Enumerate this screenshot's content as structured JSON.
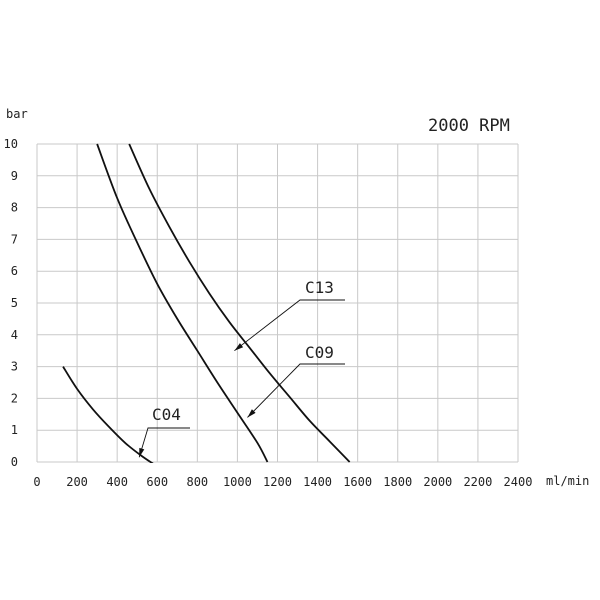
{
  "chart_data": {
    "type": "line",
    "title": "2000 RPM",
    "xlabel": "ml/min",
    "ylabel": "bar",
    "xlim": [
      0,
      2400
    ],
    "ylim": [
      0,
      10
    ],
    "xticks": [
      "0",
      "200",
      "400",
      "600",
      "800",
      "1000",
      "1200",
      "1400",
      "1600",
      "1800",
      "2000",
      "2200",
      "2400"
    ],
    "yticks": [
      "0",
      "1",
      "2",
      "3",
      "4",
      "5",
      "6",
      "7",
      "8",
      "9",
      "10"
    ],
    "grid": true,
    "series": [
      {
        "name": "C04",
        "x": [
          130,
          200,
          280,
          360,
          440,
          520,
          590
        ],
        "y": [
          3,
          2.3,
          1.65,
          1.1,
          0.6,
          0.2,
          -0.1
        ]
      },
      {
        "name": "C09",
        "x": [
          300,
          400,
          500,
          600,
          700,
          800,
          900,
          1000,
          1100,
          1150
        ],
        "y": [
          10,
          8.3,
          6.9,
          5.6,
          4.5,
          3.5,
          2.5,
          1.55,
          0.6,
          0
        ]
      },
      {
        "name": "C13",
        "x": [
          460,
          560,
          660,
          760,
          860,
          960,
          1060,
          1160,
          1260,
          1360,
          1460,
          1560
        ],
        "y": [
          10,
          8.6,
          7.4,
          6.3,
          5.3,
          4.4,
          3.6,
          2.8,
          2.05,
          1.3,
          0.65,
          0
        ]
      }
    ]
  }
}
